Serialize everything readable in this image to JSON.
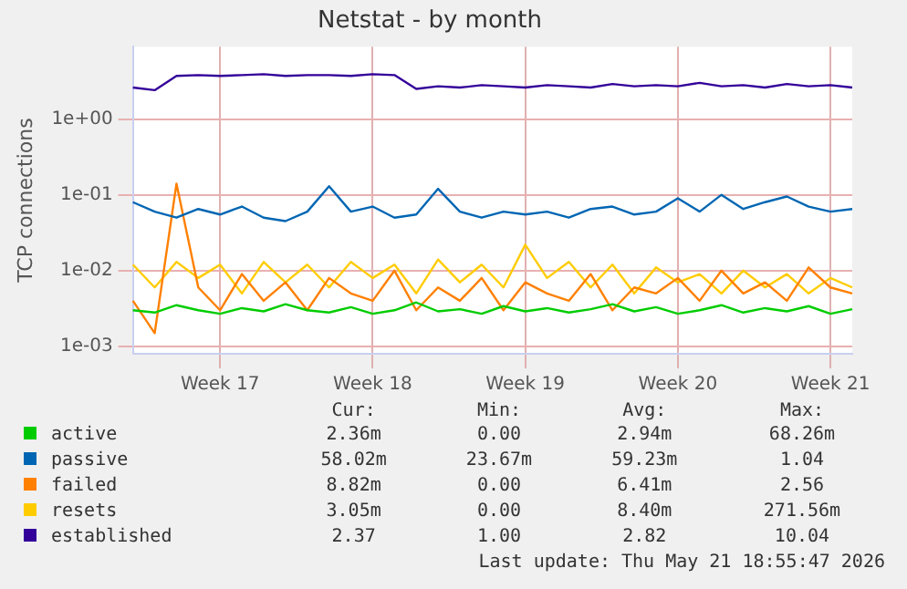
{
  "chart_data": {
    "type": "line",
    "title": "Netstat - by month",
    "ylabel": "TCP connections",
    "categories": [
      null,
      null,
      null,
      null,
      "Week 17",
      null,
      null,
      null,
      null,
      null,
      null,
      "Week 18",
      null,
      null,
      null,
      null,
      null,
      null,
      "Week 19",
      null,
      null,
      null,
      null,
      null,
      null,
      "Week 20",
      null,
      null,
      null,
      null,
      null,
      null,
      "Week 21",
      null
    ],
    "log": "y",
    "ylim": [
      0.0008,
      9
    ],
    "yticks": [
      {
        "value": 0.001,
        "label": "1e-03"
      },
      {
        "value": 0.01,
        "label": "1e-02"
      },
      {
        "value": 0.1,
        "label": "1e-01"
      },
      {
        "value": 1,
        "label": "1e+00"
      }
    ],
    "grid": true,
    "legend": "bottom",
    "marker": "none",
    "line_style": "solid",
    "series": [
      {
        "name": "active",
        "color": "#00cc00",
        "values": [
          0.003,
          0.0028,
          0.0035,
          0.003,
          0.0027,
          0.0032,
          0.0029,
          0.0036,
          0.003,
          0.0028,
          0.0033,
          0.0027,
          0.003,
          0.0038,
          0.0029,
          0.0031,
          0.0027,
          0.0034,
          0.0029,
          0.0032,
          0.0028,
          0.0031,
          0.0036,
          0.0029,
          0.0033,
          0.0027,
          0.003,
          0.0035,
          0.0028,
          0.0032,
          0.0029,
          0.0034,
          0.0027,
          0.0031
        ]
      },
      {
        "name": "passive",
        "color": "#0066b3",
        "values": [
          0.08,
          0.06,
          0.05,
          0.065,
          0.055,
          0.07,
          0.05,
          0.045,
          0.06,
          0.13,
          0.06,
          0.07,
          0.05,
          0.055,
          0.12,
          0.06,
          0.05,
          0.06,
          0.055,
          0.06,
          0.05,
          0.065,
          0.07,
          0.055,
          0.06,
          0.09,
          0.06,
          0.1,
          0.065,
          0.08,
          0.095,
          0.07,
          0.06,
          0.065
        ]
      },
      {
        "name": "failed",
        "color": "#ff8000",
        "values": [
          0.004,
          0.0015,
          0.14,
          0.006,
          0.003,
          0.009,
          0.004,
          0.007,
          0.003,
          0.008,
          0.005,
          0.004,
          0.01,
          0.003,
          0.006,
          0.004,
          0.008,
          0.003,
          0.007,
          0.005,
          0.004,
          0.009,
          0.003,
          0.006,
          0.005,
          0.008,
          0.004,
          0.01,
          0.005,
          0.007,
          0.004,
          0.011,
          0.006,
          0.005
        ]
      },
      {
        "name": "resets",
        "color": "#ffcc00",
        "values": [
          0.012,
          0.006,
          0.013,
          0.008,
          0.012,
          0.005,
          0.013,
          0.007,
          0.012,
          0.006,
          0.013,
          0.008,
          0.012,
          0.005,
          0.014,
          0.007,
          0.012,
          0.006,
          0.022,
          0.008,
          0.013,
          0.006,
          0.012,
          0.005,
          0.011,
          0.007,
          0.009,
          0.005,
          0.01,
          0.006,
          0.009,
          0.005,
          0.008,
          0.006
        ]
      },
      {
        "name": "established",
        "color": "#330099",
        "values": [
          2.6,
          2.4,
          3.7,
          3.8,
          3.7,
          3.8,
          3.9,
          3.7,
          3.8,
          3.8,
          3.7,
          3.9,
          3.8,
          2.5,
          2.7,
          2.6,
          2.8,
          2.7,
          2.6,
          2.8,
          2.7,
          2.6,
          2.9,
          2.7,
          2.8,
          2.7,
          3.0,
          2.7,
          2.8,
          2.6,
          2.9,
          2.7,
          2.8,
          2.6
        ]
      }
    ],
    "annotations": [
      "Cur:",
      "Min:",
      "Avg:",
      "Max:",
      "2.36m",
      "0.00",
      "2.94m",
      "68.26m",
      "58.02m",
      "23.67m",
      "59.23m",
      "1.04",
      "8.82m",
      "0.00",
      "6.41m",
      "2.56",
      "3.05m",
      "0.00",
      "8.40m",
      "271.56m",
      "2.37",
      "1.00",
      "2.82",
      "10.04",
      "Last update: Thu May 21 18:55:47 2026"
    ]
  }
}
